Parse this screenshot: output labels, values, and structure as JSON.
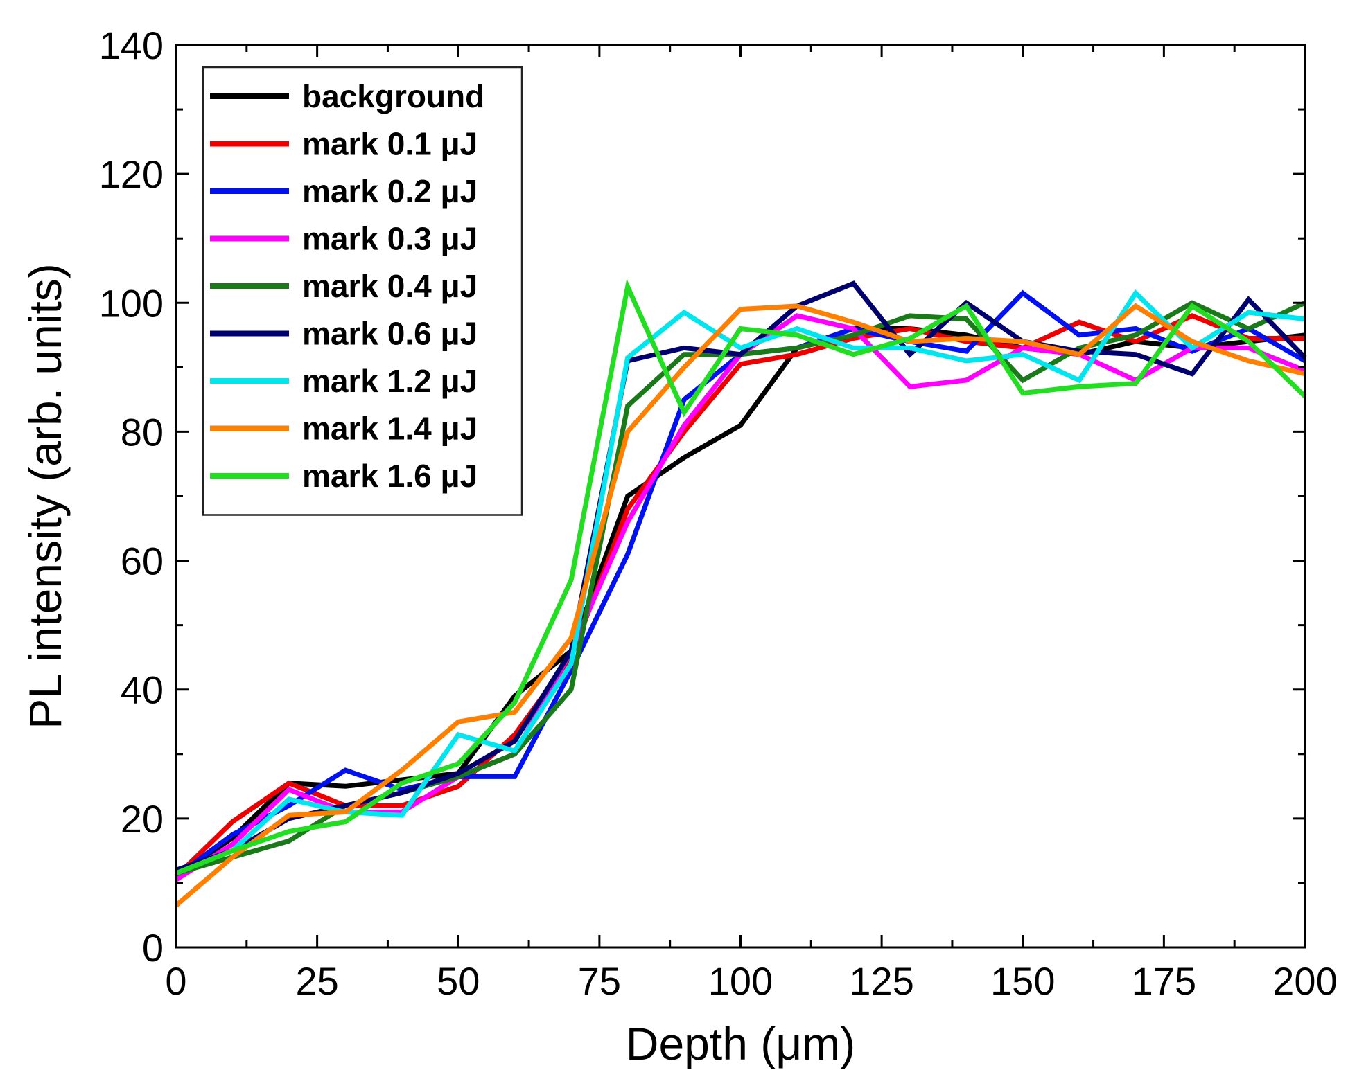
{
  "chart_data": {
    "type": "line",
    "title": "",
    "xlabel": "Depth (μm)",
    "ylabel": "PL intensity  (arb. units)",
    "xlim": [
      0,
      200
    ],
    "ylim": [
      0,
      140
    ],
    "xticks": [
      0,
      25,
      50,
      75,
      100,
      125,
      150,
      175,
      200
    ],
    "yticks": [
      0,
      20,
      40,
      60,
      80,
      100,
      120,
      140
    ],
    "xtick_labels": [
      "0",
      "25",
      "50",
      "75",
      "100",
      "125",
      "150",
      "175",
      "200"
    ],
    "ytick_labels": [
      "0",
      "20",
      "40",
      "60",
      "80",
      "100",
      "120",
      "140"
    ],
    "grid": false,
    "legend_position": "top-left",
    "x": [
      0,
      10,
      20,
      30,
      40,
      50,
      60,
      70,
      80,
      90,
      100,
      110,
      120,
      130,
      140,
      150,
      160,
      170,
      180,
      190,
      200
    ],
    "series": [
      {
        "name": "background",
        "color": "#000000",
        "values": [
          11,
          17,
          25.5,
          25,
          26,
          27,
          39,
          46,
          70,
          76,
          81,
          93,
          96,
          96,
          95,
          93,
          92,
          94,
          93,
          94,
          95
        ]
      },
      {
        "name": "mark 0.1 μJ",
        "color": "#ee0000",
        "values": [
          11,
          19.5,
          25.5,
          22,
          22,
          25,
          33,
          45,
          68,
          80,
          90.5,
          92,
          94.5,
          96,
          94,
          93,
          97,
          94,
          98,
          94.5,
          94.5
        ]
      },
      {
        "name": "mark 0.2 μJ",
        "color": "#0010ee",
        "values": [
          11,
          17.5,
          22,
          27.5,
          24.5,
          26.5,
          26.5,
          43,
          61,
          85,
          92,
          93,
          96,
          94,
          92.5,
          101.5,
          95,
          96,
          92.5,
          96,
          91
        ]
      },
      {
        "name": "mark 0.3 μJ",
        "color": "#ff00ff",
        "values": [
          10.5,
          16,
          24.5,
          21,
          21,
          26.5,
          30,
          46,
          66,
          81,
          92,
          98,
          96,
          87,
          88,
          93,
          92,
          88,
          93,
          93,
          89.5
        ]
      },
      {
        "name": "mark 0.4 μJ",
        "color": "#1a7a1a",
        "values": [
          11.5,
          14,
          16.5,
          22,
          24,
          26.5,
          30,
          40,
          84,
          92,
          92,
          93,
          95,
          98,
          97.5,
          88,
          93,
          95,
          100,
          96,
          100
        ]
      },
      {
        "name": "mark 0.6 μJ",
        "color": "#00006e",
        "values": [
          12,
          15,
          20,
          22,
          24,
          27,
          32,
          46,
          91,
          93,
          92,
          99.5,
          103,
          92,
          100,
          94,
          92.5,
          92,
          89,
          100.5,
          91.5
        ]
      },
      {
        "name": "mark 1.2 μJ",
        "color": "#00e5ee",
        "values": [
          11.5,
          15,
          23,
          21,
          20.5,
          33,
          30.5,
          44,
          91.5,
          98.5,
          93,
          96,
          93,
          93,
          91,
          92,
          88,
          101.5,
          93,
          98.5,
          97.5
        ]
      },
      {
        "name": "mark 1.4 μJ",
        "color": "#ff7f00",
        "values": [
          6.5,
          14,
          20.5,
          21,
          27.5,
          35,
          36.5,
          48,
          80,
          90,
          99,
          99.5,
          97,
          94,
          94.5,
          94,
          92,
          99.5,
          94,
          91,
          89
        ]
      },
      {
        "name": "mark 1.6 μJ",
        "color": "#22dd22",
        "values": [
          11.5,
          15,
          18,
          19.5,
          25.5,
          28.5,
          38,
          57,
          102.5,
          83,
          96,
          95,
          92,
          94.5,
          99.5,
          86,
          87,
          87.5,
          99.5,
          94,
          85.5
        ]
      }
    ]
  }
}
